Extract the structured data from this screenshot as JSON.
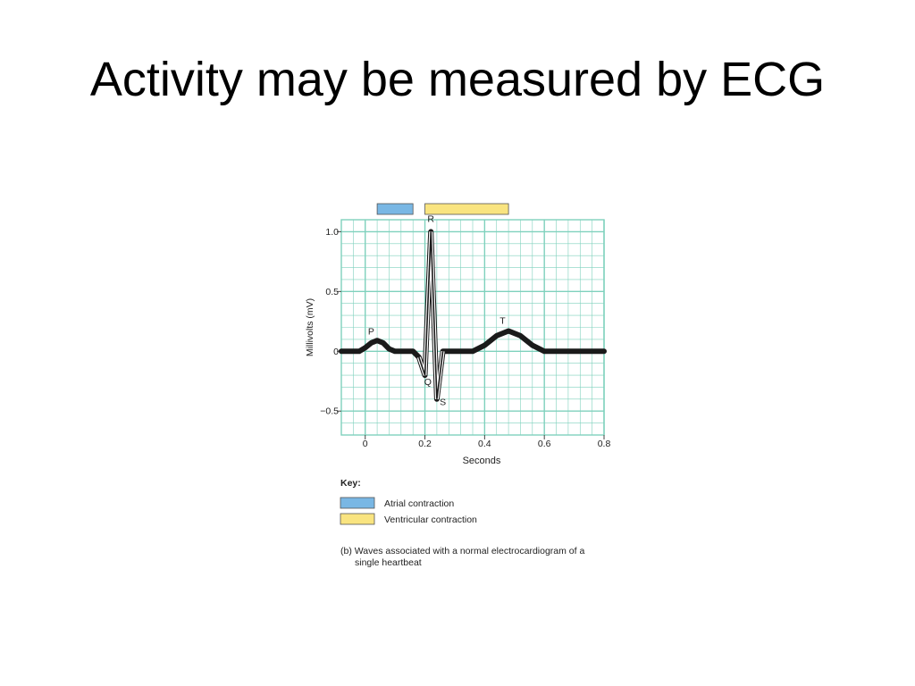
{
  "slide": {
    "title": "Activity may be measured by ECG"
  },
  "chart_data": {
    "type": "line",
    "title": "",
    "xlabel": "Seconds",
    "ylabel": "Millivolts (mV)",
    "xlim": [
      -0.08,
      0.8
    ],
    "ylim": [
      -0.7,
      1.1
    ],
    "x_ticks": [
      0,
      0.2,
      0.4,
      0.6,
      0.8
    ],
    "x_tick_labels": [
      "0",
      "0.2",
      "0.4",
      "0.6",
      "0.8"
    ],
    "y_ticks": [
      1.0,
      0.5,
      0,
      -0.5
    ],
    "y_tick_labels": [
      "1.0",
      "0.5",
      "0",
      "−0.5"
    ],
    "grid": true,
    "series": [
      {
        "x": [
          -0.08,
          -0.02,
          0.0,
          0.02,
          0.04,
          0.06,
          0.08,
          0.1,
          0.16,
          0.18,
          0.2,
          0.22,
          0.24,
          0.26,
          0.3,
          0.36,
          0.4,
          0.44,
          0.48,
          0.52,
          0.56,
          0.6,
          0.8
        ],
        "y": [
          0,
          0,
          0.03,
          0.07,
          0.09,
          0.07,
          0.02,
          0,
          0,
          -0.05,
          -0.2,
          1.0,
          -0.4,
          0,
          0,
          0,
          0.05,
          0.13,
          0.17,
          0.13,
          0.05,
          0,
          0
        ]
      }
    ],
    "annotations": [
      {
        "text": "P",
        "x": 0.02,
        "y": 0.14
      },
      {
        "text": "Q",
        "x": 0.21,
        "y": -0.28
      },
      {
        "text": "R",
        "x": 0.22,
        "y": 1.08
      },
      {
        "text": "S",
        "x": 0.26,
        "y": -0.45
      },
      {
        "text": "T",
        "x": 0.46,
        "y": 0.23
      }
    ],
    "phase_bars": [
      {
        "key": "atrial",
        "start": 0.04,
        "end": 0.16,
        "color": "#79b7e4"
      },
      {
        "key": "ventricular",
        "start": 0.2,
        "end": 0.48,
        "color": "#f9e480"
      }
    ],
    "key": {
      "title": "Key:",
      "items": [
        {
          "label": "Atrial contraction",
          "color": "#79b7e4"
        },
        {
          "label": "Ventricular contraction",
          "color": "#f9e480"
        }
      ]
    },
    "grid_color": "#7fd1bd",
    "line_color": "#1a1a1a"
  },
  "caption": {
    "line1": "(b) Waves associated with a normal electrocardiogram of a",
    "line2": "single heartbeat"
  }
}
